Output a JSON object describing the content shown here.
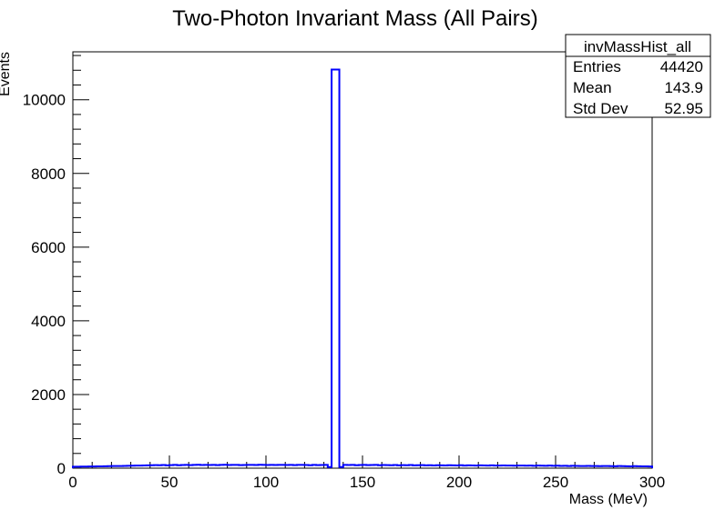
{
  "chart_data": {
    "type": "histogram",
    "title": "Two-Photon Invariant Mass (All Pairs)",
    "xlabel": "Mass (MeV)",
    "ylabel": "Events",
    "xlim": [
      0,
      300
    ],
    "ylim": [
      0,
      11300
    ],
    "x_ticks": [
      "0",
      "50",
      "100",
      "150",
      "200",
      "250",
      "300"
    ],
    "y_ticks": [
      "0",
      "2000",
      "4000",
      "6000",
      "8000",
      "10000"
    ],
    "line_color": "#0000ff",
    "bin_width": 2,
    "baseline_bins": {
      "x_start": 0,
      "x_end": 300,
      "values": [
        40,
        40,
        42,
        43,
        45,
        47,
        48,
        50,
        52,
        55,
        58,
        60,
        60,
        62,
        65,
        68,
        70,
        72,
        75,
        78,
        80,
        82,
        80,
        85,
        78,
        82,
        88,
        80,
        85,
        90,
        82,
        88,
        92,
        85,
        90,
        85,
        90,
        82,
        88,
        92,
        85,
        90,
        88,
        82,
        85,
        90,
        88,
        85,
        92,
        88,
        85,
        90,
        85,
        88,
        90,
        85,
        88,
        82,
        90,
        88,
        85,
        80,
        88,
        82,
        85,
        90,
        30,
        10800,
        10800,
        30,
        90,
        85,
        88,
        80,
        85,
        90,
        82,
        85,
        88,
        80,
        85,
        82,
        80,
        85,
        78,
        82,
        80,
        85,
        78,
        80,
        82,
        78,
        80,
        75,
        80,
        78,
        75,
        80,
        78,
        75,
        80,
        72,
        78,
        75,
        72,
        78,
        75,
        72,
        78,
        72,
        70,
        75,
        72,
        70,
        68,
        72,
        70,
        68,
        72,
        65,
        70,
        68,
        65,
        70,
        65,
        68,
        62,
        65,
        60,
        65,
        62,
        60,
        58,
        62,
        60,
        58,
        55,
        60,
        58,
        55,
        52,
        58,
        55,
        52,
        50,
        55,
        52,
        50,
        48,
        45
      ]
    },
    "peak": {
      "x_low": 134,
      "x_high": 137,
      "value": 10820
    }
  },
  "stats_box": {
    "name": "invMassHist_all",
    "rows": [
      {
        "label": "Entries",
        "value": "44420"
      },
      {
        "label": "Mean",
        "value": "143.9"
      },
      {
        "label": "Std Dev",
        "value": "52.95"
      }
    ]
  }
}
